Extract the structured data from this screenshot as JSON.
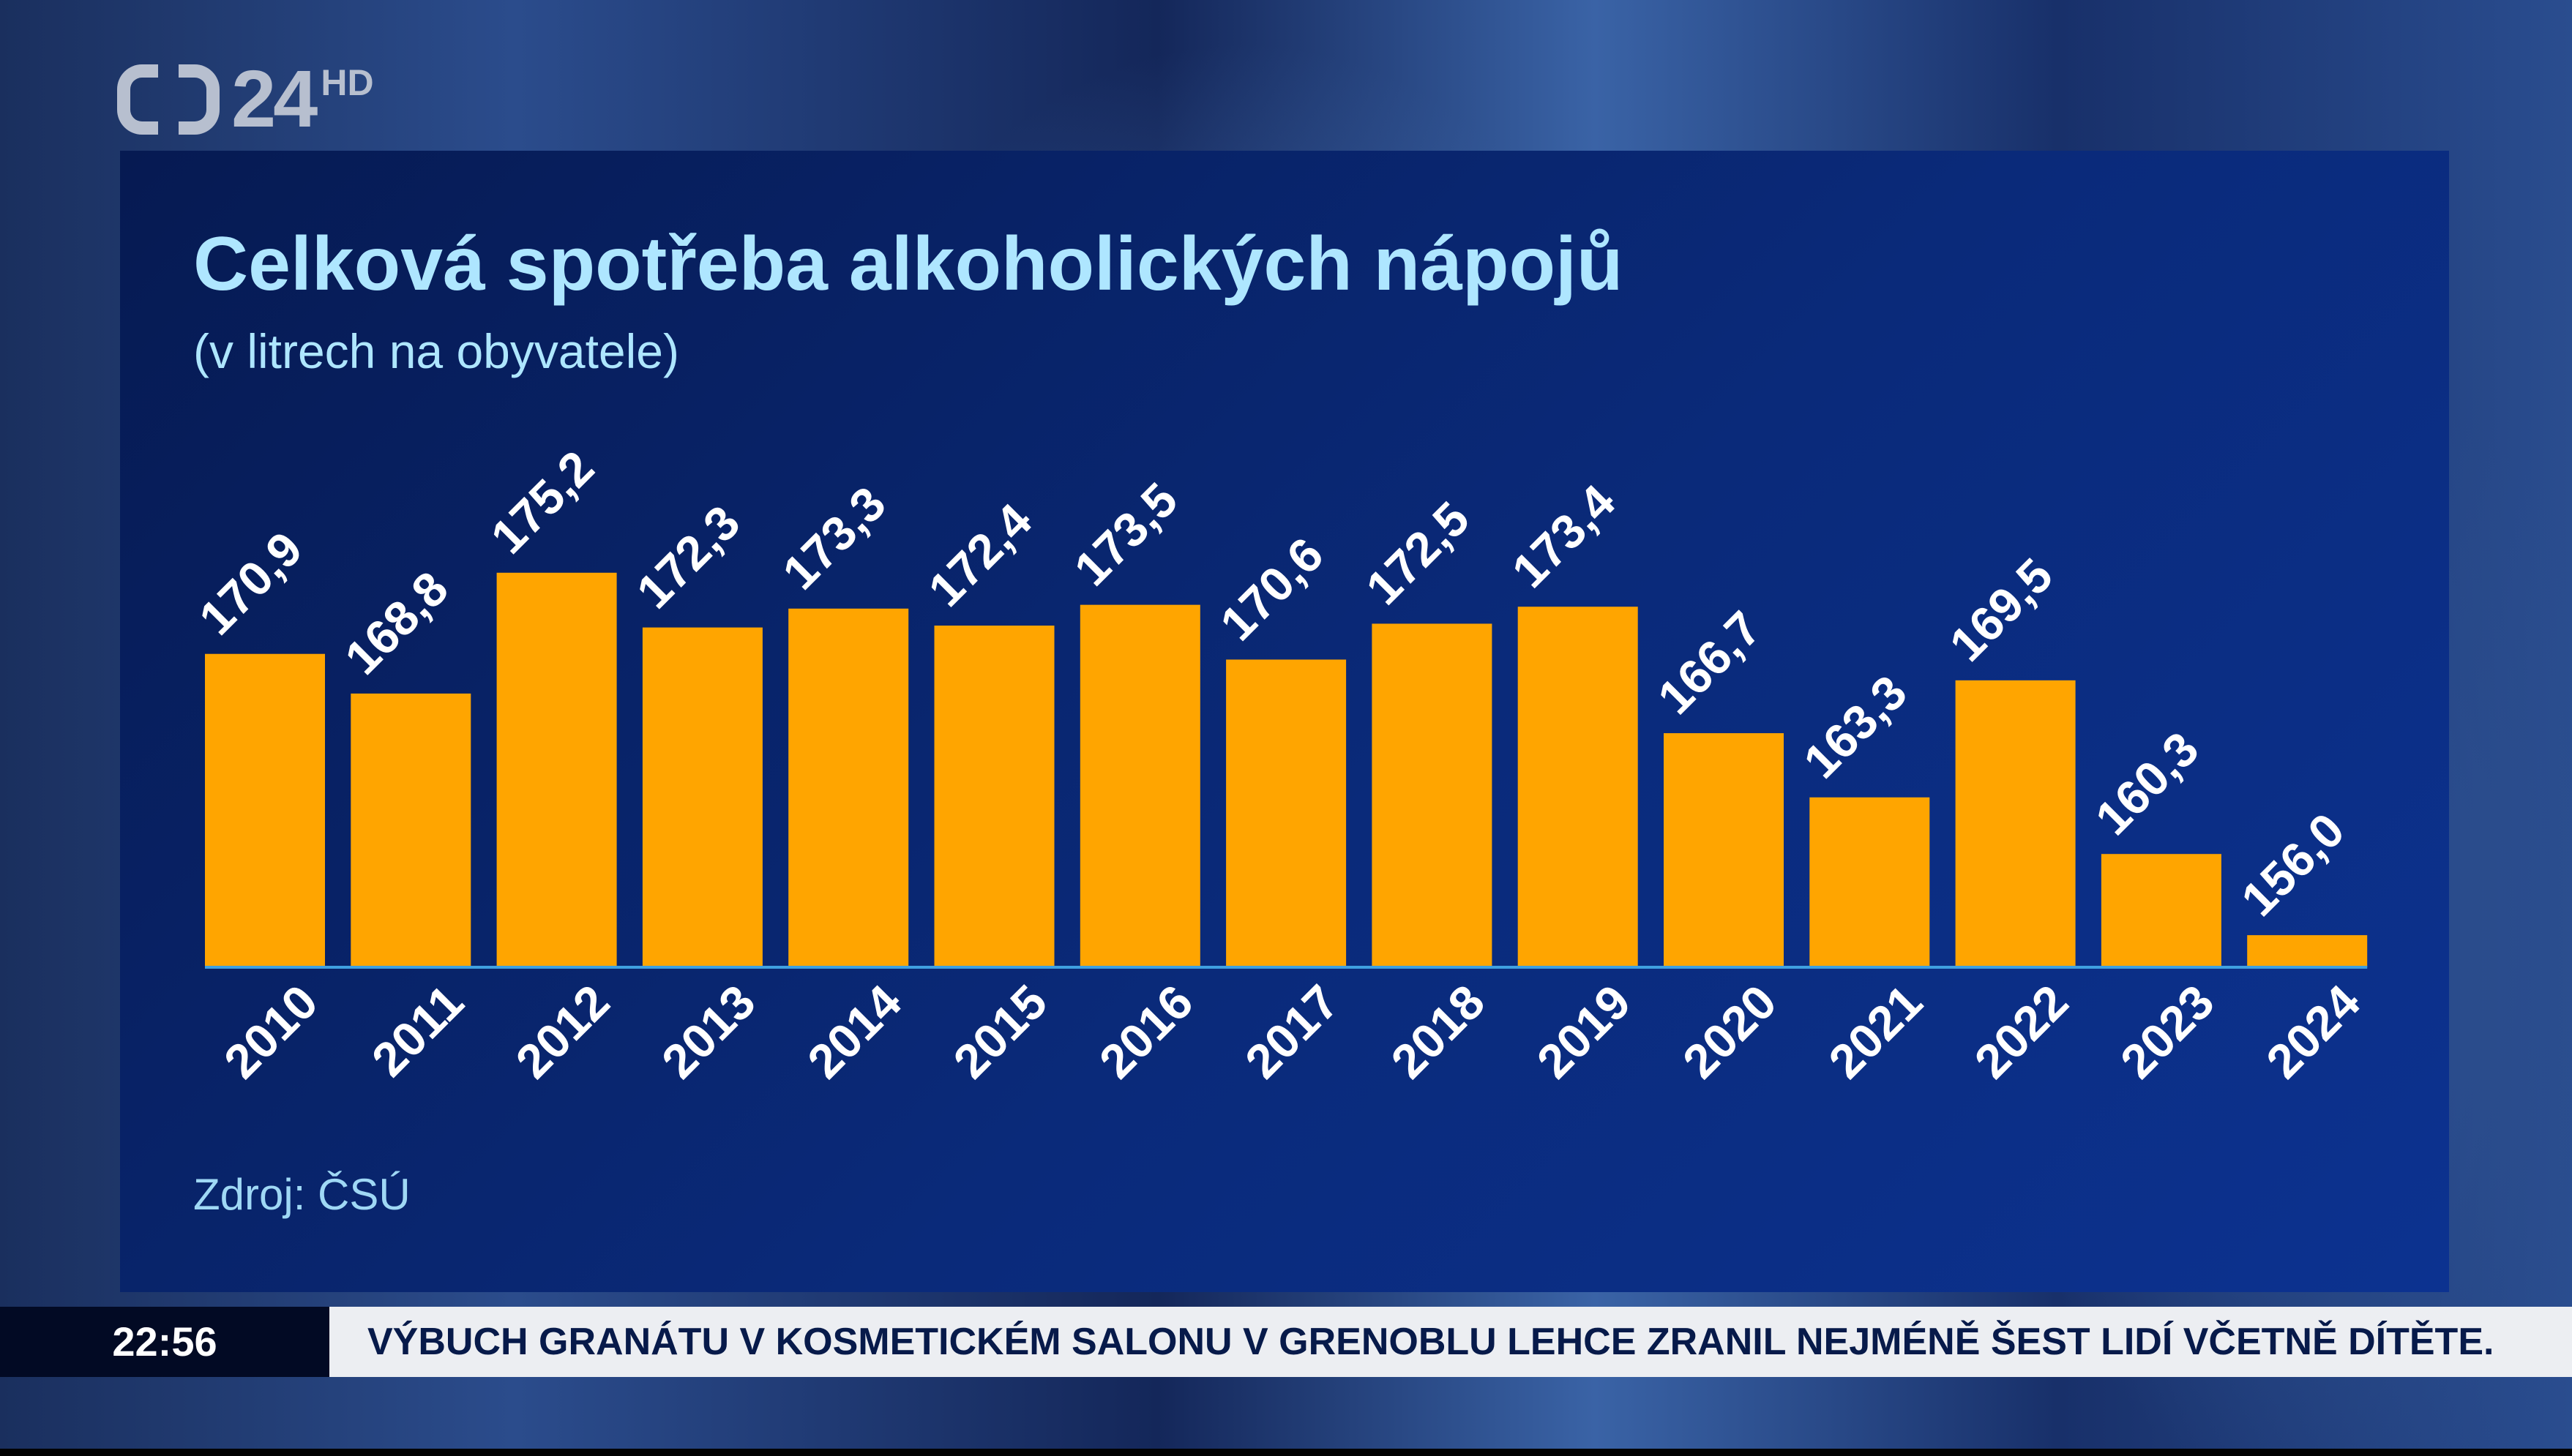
{
  "logo": {
    "text": "24",
    "superscript": "HD"
  },
  "chart_data": {
    "type": "bar",
    "title": "Celková spotřeba alkoholických nápojů",
    "subtitle": "(v litrech na obyvatele)",
    "categories": [
      "2010",
      "2011",
      "2012",
      "2013",
      "2014",
      "2015",
      "2016",
      "2017",
      "2018",
      "2019",
      "2020",
      "2021",
      "2022",
      "2023",
      "2024"
    ],
    "values": [
      170.9,
      168.8,
      175.2,
      172.3,
      173.3,
      172.4,
      173.5,
      170.6,
      172.5,
      173.4,
      166.7,
      163.3,
      169.5,
      160.3,
      156.0
    ],
    "value_labels": [
      "170,9",
      "168,8",
      "175,2",
      "172,3",
      "173,3",
      "172,4",
      "173,5",
      "170,6",
      "172,5",
      "173,4",
      "166,7",
      "163,3",
      "169,5",
      "160,3",
      "156,0"
    ],
    "ylim": [
      154.3,
      176
    ],
    "xlabel": "",
    "ylabel": "",
    "grid": false,
    "bar_color": "#ffa500",
    "source": "Zdroj: ČSÚ"
  },
  "ticker": {
    "time": "22:56",
    "headline": "VÝBUCH GRANÁTU V KOSMETICKÉM SALONU V GRENOBLU LEHCE ZRANIL NEJMÉNĚ ŠEST LIDÍ VČETNĚ DÍTĚTE."
  }
}
